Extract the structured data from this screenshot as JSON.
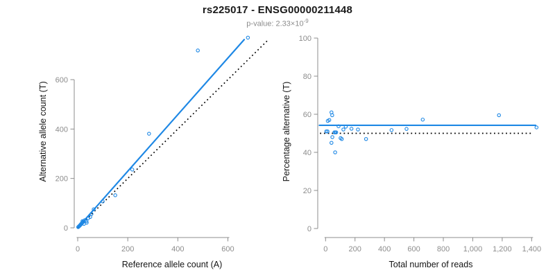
{
  "header": {
    "title": "rs225017 - ENSG00000211448",
    "p_value_prefix": "p-value: 2.33×10",
    "p_value_exponent": "-9"
  },
  "colors": {
    "accent_blue": "#1E88E5",
    "dotted_line": "#000000",
    "axis_gray": "#8C8C8C",
    "label_dark": "#141414"
  },
  "chart_data": [
    {
      "id": "allele-counts",
      "type": "scatter",
      "title": "",
      "xlabel": "Reference allele count (A)",
      "ylabel": "Alternative allele count (T)",
      "xlim": [
        0,
        680
      ],
      "ylim": [
        0,
        780
      ],
      "grid": false,
      "x_ticks": [
        0,
        200,
        400,
        600
      ],
      "x_tick_labels": [
        "0",
        "200",
        "400",
        "600"
      ],
      "y_ticks": [
        0,
        200,
        400,
        600
      ],
      "y_tick_labels": [
        "0",
        "200",
        "400",
        "600"
      ],
      "points": [
        [
          2,
          3
        ],
        [
          5,
          6
        ],
        [
          7,
          8
        ],
        [
          9,
          10
        ],
        [
          11,
          12
        ],
        [
          13,
          15
        ],
        [
          15,
          17
        ],
        [
          17,
          19
        ],
        [
          20,
          22
        ],
        [
          22,
          25
        ],
        [
          25,
          16
        ],
        [
          28,
          31
        ],
        [
          19,
          27
        ],
        [
          35,
          27
        ],
        [
          36,
          21
        ],
        [
          42,
          39
        ],
        [
          50,
          44
        ],
        [
          55,
          56
        ],
        [
          64,
          75
        ],
        [
          100,
          107
        ],
        [
          150,
          132
        ],
        [
          218,
          236
        ],
        [
          285,
          381
        ],
        [
          480,
          718
        ],
        [
          680,
          770
        ]
      ],
      "lines": [
        {
          "name": "fitted-ratio-line",
          "style": "solid",
          "points": [
            [
              0,
              0
            ],
            [
              665,
              762
            ]
          ]
        },
        {
          "name": "identity-line",
          "style": "dotted",
          "points": [
            [
              0,
              0
            ],
            [
              757,
              757
            ]
          ]
        }
      ]
    },
    {
      "id": "percentage-vs-reads",
      "type": "scatter",
      "title": "",
      "xlabel": "Total number of reads",
      "ylabel": "Percentage alternative (T)",
      "xlim": [
        0,
        1450
      ],
      "ylim": [
        0,
        100
      ],
      "grid": false,
      "x_ticks": [
        0,
        200,
        400,
        600,
        800,
        1000,
        1200,
        1400
      ],
      "x_tick_labels": [
        "0",
        "200",
        "400",
        "600",
        "800",
        "1,000",
        "1,200",
        "1,400"
      ],
      "y_ticks": [
        0,
        20,
        40,
        60,
        80,
        100
      ],
      "y_tick_labels": [
        "0",
        "20",
        "40",
        "60",
        "80",
        "100"
      ],
      "points": [
        [
          5,
          51
        ],
        [
          13,
          51
        ],
        [
          15,
          56.5
        ],
        [
          25,
          57
        ],
        [
          40,
          61
        ],
        [
          45,
          59.5
        ],
        [
          40,
          45
        ],
        [
          46,
          48
        ],
        [
          65,
          40
        ],
        [
          60,
          50.5
        ],
        [
          66,
          50.5
        ],
        [
          72,
          50.5
        ],
        [
          88,
          53.7
        ],
        [
          102,
          47.5
        ],
        [
          110,
          47
        ],
        [
          121,
          52
        ],
        [
          137,
          53.5
        ],
        [
          176,
          52.4
        ],
        [
          220,
          52
        ],
        [
          275,
          47
        ],
        [
          448,
          51.7
        ],
        [
          550,
          52.3
        ],
        [
          660,
          57.2
        ],
        [
          1178,
          59.5
        ],
        [
          1433,
          53.1
        ]
      ],
      "lines": [
        {
          "name": "fitted-percentage-line",
          "style": "solid",
          "points": [
            [
              -42,
              54.2
            ],
            [
              1427,
              54.2
            ]
          ]
        },
        {
          "name": "expected-50-percent-line",
          "style": "dotted",
          "points": [
            [
              -38,
              50
            ],
            [
              1408,
              50
            ]
          ]
        }
      ]
    }
  ]
}
